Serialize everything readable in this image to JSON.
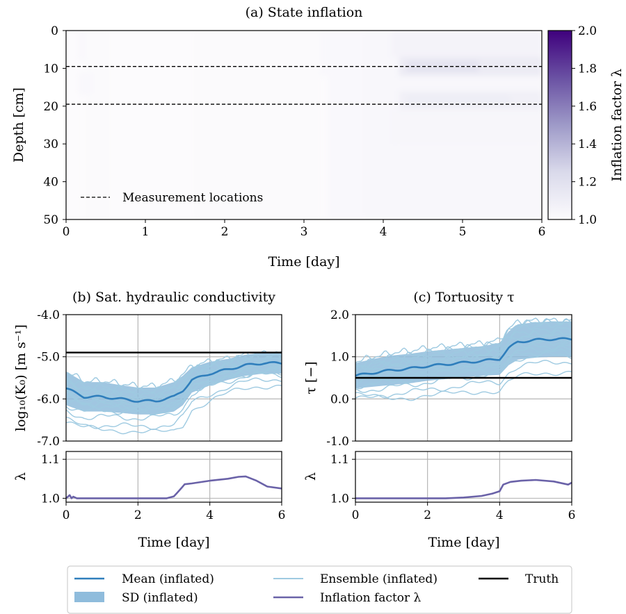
{
  "chart_data": [
    {
      "id": "a",
      "type": "heatmap",
      "title": "(a) State inflation",
      "xlabel": "Time [day]",
      "ylabel": "Depth [cm]",
      "xlim": [
        0,
        6
      ],
      "ylim": [
        50,
        0
      ],
      "xticks": [
        "0",
        "1",
        "2",
        "3",
        "4",
        "5",
        "6"
      ],
      "yticks": [
        "0",
        "10",
        "20",
        "30",
        "40",
        "50"
      ],
      "colorbar": {
        "label": "Inflation factor λ",
        "range": [
          1.0,
          2.0
        ],
        "ticks": [
          "1.0",
          "1.2",
          "1.4",
          "1.6",
          "1.8",
          "2.0"
        ],
        "colors": [
          "#fcfbfd",
          "#dadaeb",
          "#9e9ac8",
          "#6a51a3",
          "#3f007d"
        ]
      },
      "measurement_depths": [
        9.5,
        19.5
      ],
      "legend": {
        "measurement_label": "Measurement locations"
      },
      "cells": [
        {
          "t0": 0.15,
          "t1": 0.3,
          "d0": 0,
          "d1": 8,
          "v": 1.02
        },
        {
          "t0": 0.25,
          "t1": 0.55,
          "d0": 0,
          "d1": 50,
          "v": 1.01
        },
        {
          "t0": 0.15,
          "t1": 0.35,
          "d0": 11,
          "d1": 17,
          "v": 1.02
        },
        {
          "t0": 1.6,
          "t1": 3.2,
          "d0": 0,
          "d1": 50,
          "v": 1.01
        },
        {
          "t0": 3.2,
          "t1": 6.0,
          "d0": 0,
          "d1": 12,
          "v": 1.02
        },
        {
          "t0": 3.3,
          "t1": 3.75,
          "d0": 0,
          "d1": 50,
          "v": 1.02
        },
        {
          "t0": 3.75,
          "t1": 4.15,
          "d0": 0,
          "d1": 50,
          "v": 1.03
        },
        {
          "t0": 4.15,
          "t1": 6.0,
          "d0": 0,
          "d1": 50,
          "v": 1.03
        },
        {
          "t0": 4.1,
          "t1": 6.0,
          "d0": 0,
          "d1": 7,
          "v": 1.06
        },
        {
          "t0": 4.2,
          "t1": 6.0,
          "d0": 7,
          "d1": 12,
          "v": 1.12
        },
        {
          "t0": 4.3,
          "t1": 5.2,
          "d0": 8,
          "d1": 11,
          "v": 1.18
        },
        {
          "t0": 4.2,
          "t1": 6.0,
          "d0": 16,
          "d1": 21,
          "v": 1.08
        },
        {
          "t0": 4.3,
          "t1": 5.6,
          "d0": 17,
          "d1": 20,
          "v": 1.1
        },
        {
          "t0": 4.1,
          "t1": 6.0,
          "d0": 21,
          "d1": 30,
          "v": 1.04
        }
      ]
    },
    {
      "id": "b",
      "type": "line",
      "title": "(b) Sat. hydraulic conductivity",
      "ylabel": "log₁₀(K₀) [m s⁻¹]",
      "xlim": [
        0,
        6
      ],
      "ylim": [
        -7,
        -4
      ],
      "xticks": [
        "0",
        "2",
        "4",
        "6"
      ],
      "yticks": [
        "-7.0",
        "-6.0",
        "-5.0",
        "-4.0"
      ],
      "truth": -4.9,
      "x": [
        0,
        0.5,
        1,
        1.5,
        2,
        2.5,
        3,
        3.25,
        3.5,
        4,
        4.5,
        5,
        5.5,
        6
      ],
      "mean": [
        -5.75,
        -5.95,
        -5.95,
        -6.0,
        -6.05,
        -6.05,
        -5.95,
        -5.8,
        -5.55,
        -5.4,
        -5.3,
        -5.2,
        -5.15,
        -5.15
      ],
      "sd": [
        0.4,
        0.35,
        0.35,
        0.33,
        0.32,
        0.32,
        0.35,
        0.35,
        0.3,
        0.28,
        0.25,
        0.25,
        0.25,
        0.25
      ],
      "ensemble_offsets": [
        -1.15,
        -0.95,
        -0.7,
        -0.55,
        -0.4,
        -0.3,
        -0.2,
        -0.1,
        0.0,
        0.1,
        0.2,
        0.3,
        0.4,
        0.55
      ],
      "lambda": {
        "ylim": [
          0.99,
          1.12
        ],
        "yticks": [
          "1.0",
          "1.1"
        ],
        "x": [
          0,
          0.1,
          0.15,
          0.2,
          0.3,
          2.8,
          3.0,
          3.1,
          3.2,
          3.3,
          3.5,
          4.0,
          4.5,
          4.8,
          5.0,
          5.3,
          5.6,
          6.0
        ],
        "values": [
          1.0,
          1.008,
          1.0,
          1.004,
          1.0,
          1.0,
          1.005,
          1.015,
          1.025,
          1.036,
          1.038,
          1.045,
          1.05,
          1.055,
          1.056,
          1.045,
          1.03,
          1.025
        ]
      }
    },
    {
      "id": "c",
      "type": "line",
      "title": "(c) Tortuosity τ",
      "ylabel": "τ [−]",
      "xlim": [
        0,
        6
      ],
      "ylim": [
        -1,
        2
      ],
      "xticks": [
        "0",
        "2",
        "4",
        "6"
      ],
      "yticks": [
        "-1.0",
        "0.0",
        "1.0",
        "2.0"
      ],
      "truth": 0.5,
      "x": [
        0,
        0.5,
        1,
        1.5,
        2,
        2.5,
        3,
        3.5,
        4,
        4.25,
        4.5,
        5,
        5.5,
        6
      ],
      "mean": [
        0.55,
        0.62,
        0.68,
        0.72,
        0.78,
        0.82,
        0.86,
        0.9,
        0.95,
        1.2,
        1.35,
        1.4,
        1.42,
        1.42
      ],
      "sd": [
        0.3,
        0.33,
        0.35,
        0.35,
        0.35,
        0.35,
        0.35,
        0.35,
        0.38,
        0.4,
        0.42,
        0.42,
        0.42,
        0.42
      ],
      "ensemble_offsets": [
        -1.0,
        -0.8,
        -0.6,
        -0.45,
        -0.3,
        -0.2,
        -0.1,
        0.0,
        0.1,
        0.2,
        0.3,
        0.4,
        0.5,
        0.6
      ],
      "lambda": {
        "ylim": [
          0.99,
          1.12
        ],
        "yticks": [
          "1.0",
          "1.1"
        ],
        "x": [
          0,
          2.5,
          3.0,
          3.5,
          3.8,
          4.0,
          4.1,
          4.3,
          4.6,
          5.0,
          5.5,
          5.9,
          6.0
        ],
        "values": [
          1.0,
          1.0,
          1.002,
          1.006,
          1.012,
          1.018,
          1.035,
          1.042,
          1.045,
          1.047,
          1.043,
          1.035,
          1.04
        ]
      }
    }
  ],
  "shared": {
    "xlabel": "Time [day]",
    "lambda_label": "λ",
    "colors": {
      "mean": "#2f7ebc",
      "sd": "#8fbcdc",
      "ensemble": "#9ecae1",
      "lambda": "#6a62a8",
      "truth": "#000000",
      "grid": "#b0b0b0"
    }
  },
  "legend": {
    "items": [
      {
        "label": "Mean (inflated)",
        "kind": "mean"
      },
      {
        "label": "Ensemble (inflated)",
        "kind": "ensemble"
      },
      {
        "label": "Truth",
        "kind": "truth"
      },
      {
        "label": "SD (inflated)",
        "kind": "sd"
      },
      {
        "label": "Inflation factor λ",
        "kind": "lambda"
      }
    ]
  }
}
